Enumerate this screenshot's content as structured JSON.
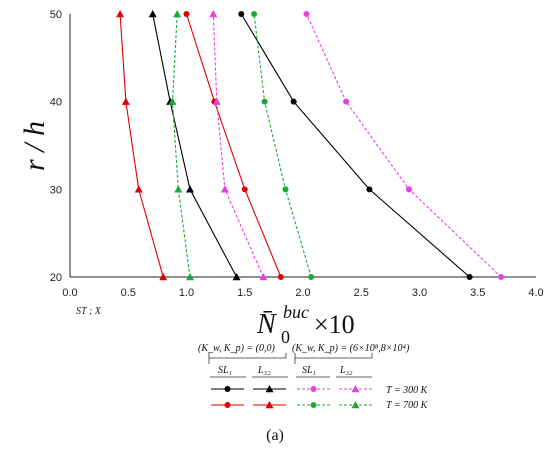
{
  "chart_data": {
    "type": "line",
    "ylabel": "r / h",
    "xlabel_main": "N̄",
    "xlabel_sub": "0",
    "xlabel_sup": "buc",
    "xlabel_suffix": "×10",
    "x_note": "ST ; X",
    "xlim": [
      0.0,
      4.0
    ],
    "ylim": [
      20,
      50
    ],
    "xticks": [
      "0.0",
      "0.5",
      "1.0",
      "1.5",
      "2.0",
      "2.5",
      "3.0",
      "3.5",
      "4.0"
    ],
    "yticks": [
      "20",
      "30",
      "40",
      "50"
    ],
    "y": [
      20,
      30,
      40,
      50
    ],
    "series": [
      {
        "name": "SL1 (0,0) T=300",
        "color": "#000000",
        "marker": "circle",
        "dash": false,
        "x": [
          3.43,
          2.57,
          1.92,
          1.47
        ]
      },
      {
        "name": "L32 (0,0) T=300",
        "color": "#000000",
        "marker": "triangle",
        "dash": false,
        "x": [
          1.43,
          1.03,
          0.86,
          0.71
        ]
      },
      {
        "name": "SL1 (0,0) T=700",
        "color": "#e00000",
        "marker": "circle",
        "dash": false,
        "x": [
          1.81,
          1.5,
          1.24,
          1.0
        ]
      },
      {
        "name": "L32 (0,0) T=700",
        "color": "#e00000",
        "marker": "triangle",
        "dash": false,
        "x": [
          0.8,
          0.59,
          0.48,
          0.43
        ]
      },
      {
        "name": "SL1 (6e8,8e4) T=300",
        "color": "#e83ee8",
        "marker": "circle",
        "dash": true,
        "x": [
          3.7,
          2.91,
          2.37,
          2.03
        ]
      },
      {
        "name": "L32 (6e8,8e4) T=300",
        "color": "#e83ee8",
        "marker": "triangle",
        "dash": true,
        "x": [
          1.66,
          1.33,
          1.26,
          1.23
        ]
      },
      {
        "name": "SL1 (6e8,8e4) T=700",
        "color": "#1aaa3a",
        "marker": "circle",
        "dash": true,
        "x": [
          2.07,
          1.85,
          1.67,
          1.58
        ]
      },
      {
        "name": "L32 (6e8,8e4) T=700",
        "color": "#1aaa3a",
        "marker": "triangle",
        "dash": true,
        "x": [
          1.03,
          0.93,
          0.88,
          0.92
        ]
      }
    ],
    "legend": {
      "group1": "(K_w, K_p) = (0,0)",
      "group2": "(K_w, K_p) = (6×10⁸,8×10⁴)",
      "col_sl": "SL₁",
      "col_l": "L₃₂",
      "row1": "T = 300 K",
      "row2": "T = 700 K"
    }
  },
  "caption": "(a)"
}
